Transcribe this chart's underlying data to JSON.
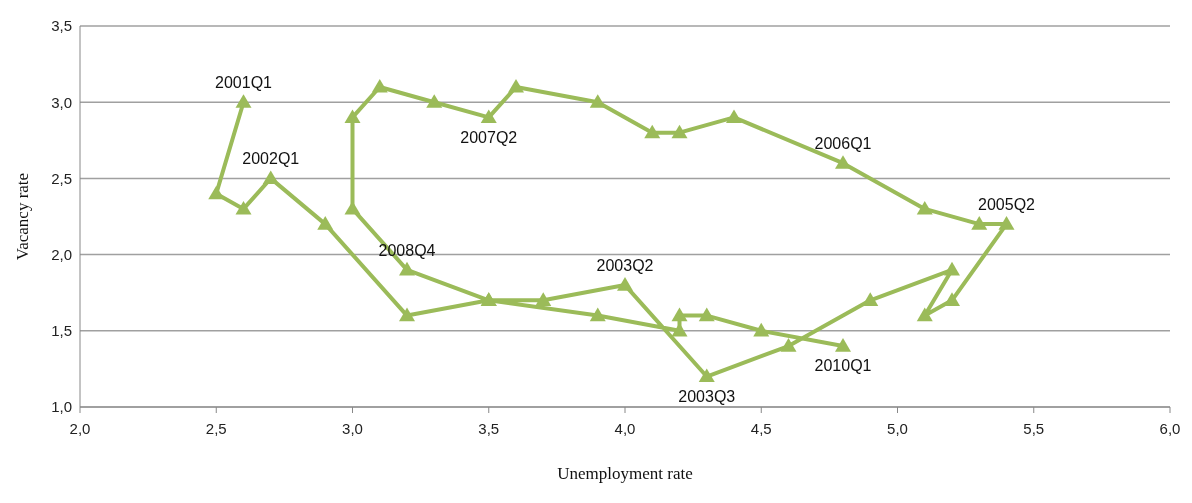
{
  "chart_data": {
    "type": "line",
    "xlabel": "Unemployment rate",
    "ylabel": "Vacancy rate",
    "xlim": [
      2.0,
      6.0
    ],
    "xticks": [
      {
        "value": 2.0,
        "label": "2,0"
      },
      {
        "value": 2.5,
        "label": "2,5"
      },
      {
        "value": 3.0,
        "label": "3,0"
      },
      {
        "value": 3.5,
        "label": "3,5"
      },
      {
        "value": 4.0,
        "label": "4,0"
      },
      {
        "value": 4.5,
        "label": "4,5"
      },
      {
        "value": 5.0,
        "label": "5,0"
      },
      {
        "value": 5.5,
        "label": "5,5"
      },
      {
        "value": 6.0,
        "label": "6,0"
      }
    ],
    "ylim": [
      1.0,
      3.5
    ],
    "yticks": [
      {
        "value": 1.0,
        "label": "1,0"
      },
      {
        "value": 1.5,
        "label": "1,5"
      },
      {
        "value": 2.0,
        "label": "2,0"
      },
      {
        "value": 2.5,
        "label": "2,5"
      },
      {
        "value": 3.0,
        "label": "3,0"
      },
      {
        "value": 3.5,
        "label": "3,5"
      }
    ],
    "grid": "y",
    "legend": false,
    "marker": "triangle",
    "line_style": "solid",
    "series": [
      {
        "color": "#9bbb59",
        "x": [
          2.6,
          2.5,
          2.6,
          2.7,
          2.9,
          3.2,
          3.5,
          3.7,
          4.0,
          4.3,
          4.6,
          4.9,
          5.2,
          5.1,
          5.2,
          5.4,
          5.3,
          5.1,
          4.8,
          4.4,
          4.2,
          4.1,
          3.9,
          3.6,
          3.5,
          3.3,
          3.1,
          3.0,
          3.0,
          3.2,
          3.5,
          3.9,
          4.2,
          4.2,
          4.3,
          4.5,
          4.8
        ],
        "values": [
          3.0,
          2.4,
          2.3,
          2.5,
          2.2,
          1.6,
          1.7,
          1.7,
          1.8,
          1.2,
          1.4,
          1.7,
          1.9,
          1.6,
          1.7,
          2.2,
          2.2,
          2.3,
          2.6,
          2.9,
          2.8,
          2.8,
          3.0,
          3.1,
          2.9,
          3.0,
          3.1,
          2.9,
          2.3,
          1.9,
          1.7,
          1.6,
          1.5,
          1.6,
          1.6,
          1.5,
          1.4
        ]
      }
    ],
    "annotations": [
      {
        "text": "2001Q1",
        "x": 2.6,
        "y": 3.0
      },
      {
        "text": "2002Q1",
        "x": 2.7,
        "y": 2.5
      },
      {
        "text": "2003Q2",
        "x": 4.0,
        "y": 1.8
      },
      {
        "text": "2003Q3",
        "x": 4.3,
        "y": 1.2
      },
      {
        "text": "2005Q2",
        "x": 5.4,
        "y": 2.2
      },
      {
        "text": "2006Q1",
        "x": 4.8,
        "y": 2.6
      },
      {
        "text": "2007Q2",
        "x": 3.5,
        "y": 2.9
      },
      {
        "text": "2008Q4",
        "x": 3.2,
        "y": 1.9
      },
      {
        "text": "2010Q1",
        "x": 4.8,
        "y": 1.4
      }
    ]
  }
}
